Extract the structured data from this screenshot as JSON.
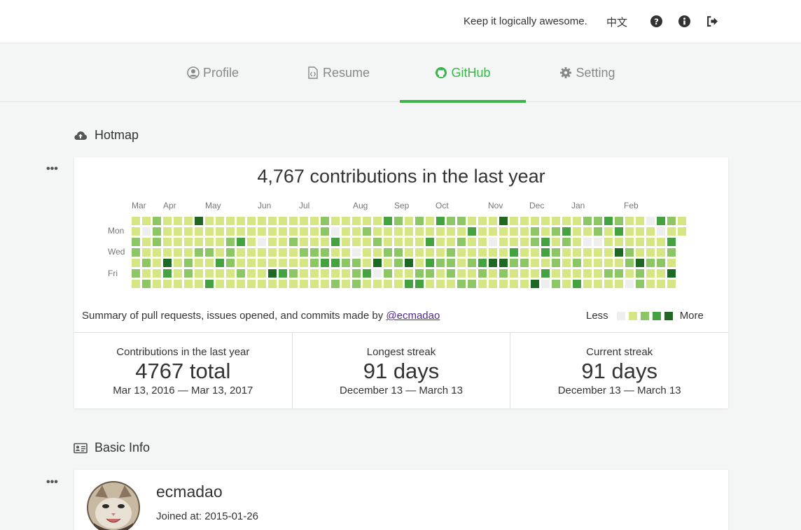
{
  "header": {
    "tagline": "Keep it logically awesome.",
    "lang_label": "中文",
    "icons": [
      "help-icon",
      "info-icon",
      "logout-icon"
    ]
  },
  "tabs": [
    {
      "label": "Profile",
      "icon": "user-icon",
      "active": false
    },
    {
      "label": "Resume",
      "icon": "file-code-icon",
      "active": false
    },
    {
      "label": "GitHub",
      "icon": "github-icon",
      "active": true
    },
    {
      "label": "Setting",
      "icon": "gear-icon",
      "active": false
    }
  ],
  "hotmap": {
    "section_title": "Hotmap",
    "section_icon": "cloud-upload-icon",
    "title": "4,767 contributions in the last year",
    "months": [
      "Mar",
      "Apr",
      "May",
      "Jun",
      "Jul",
      "Aug",
      "Sep",
      "Oct",
      "Nov",
      "Dec",
      "Jan",
      "Feb"
    ],
    "day_labels": [
      "Mon",
      "Wed",
      "Fri"
    ],
    "colors": [
      "#eeeeee",
      "#d6e685",
      "#8cc665",
      "#44a340",
      "#1e6823"
    ],
    "weeks": 53,
    "summary_prefix": "Summary of pull requests, issues opened, and commits made by",
    "username_link": "@ecmadao",
    "legend_less": "Less",
    "legend_more": "More",
    "stats": [
      {
        "label": "Contributions in the last year",
        "value": "4767 total",
        "range": "Mar 13, 2016 — Mar 13, 2017"
      },
      {
        "label": "Longest streak",
        "value": "91 days",
        "range": "December 13 — March 13"
      },
      {
        "label": "Current streak",
        "value": "91 days",
        "range": "December 13 — March 13"
      }
    ]
  },
  "basic_info": {
    "section_title": "Basic Info",
    "section_icon": "id-card-icon",
    "username": "ecmadao",
    "joined": "Joined at: 2015-01-26"
  }
}
